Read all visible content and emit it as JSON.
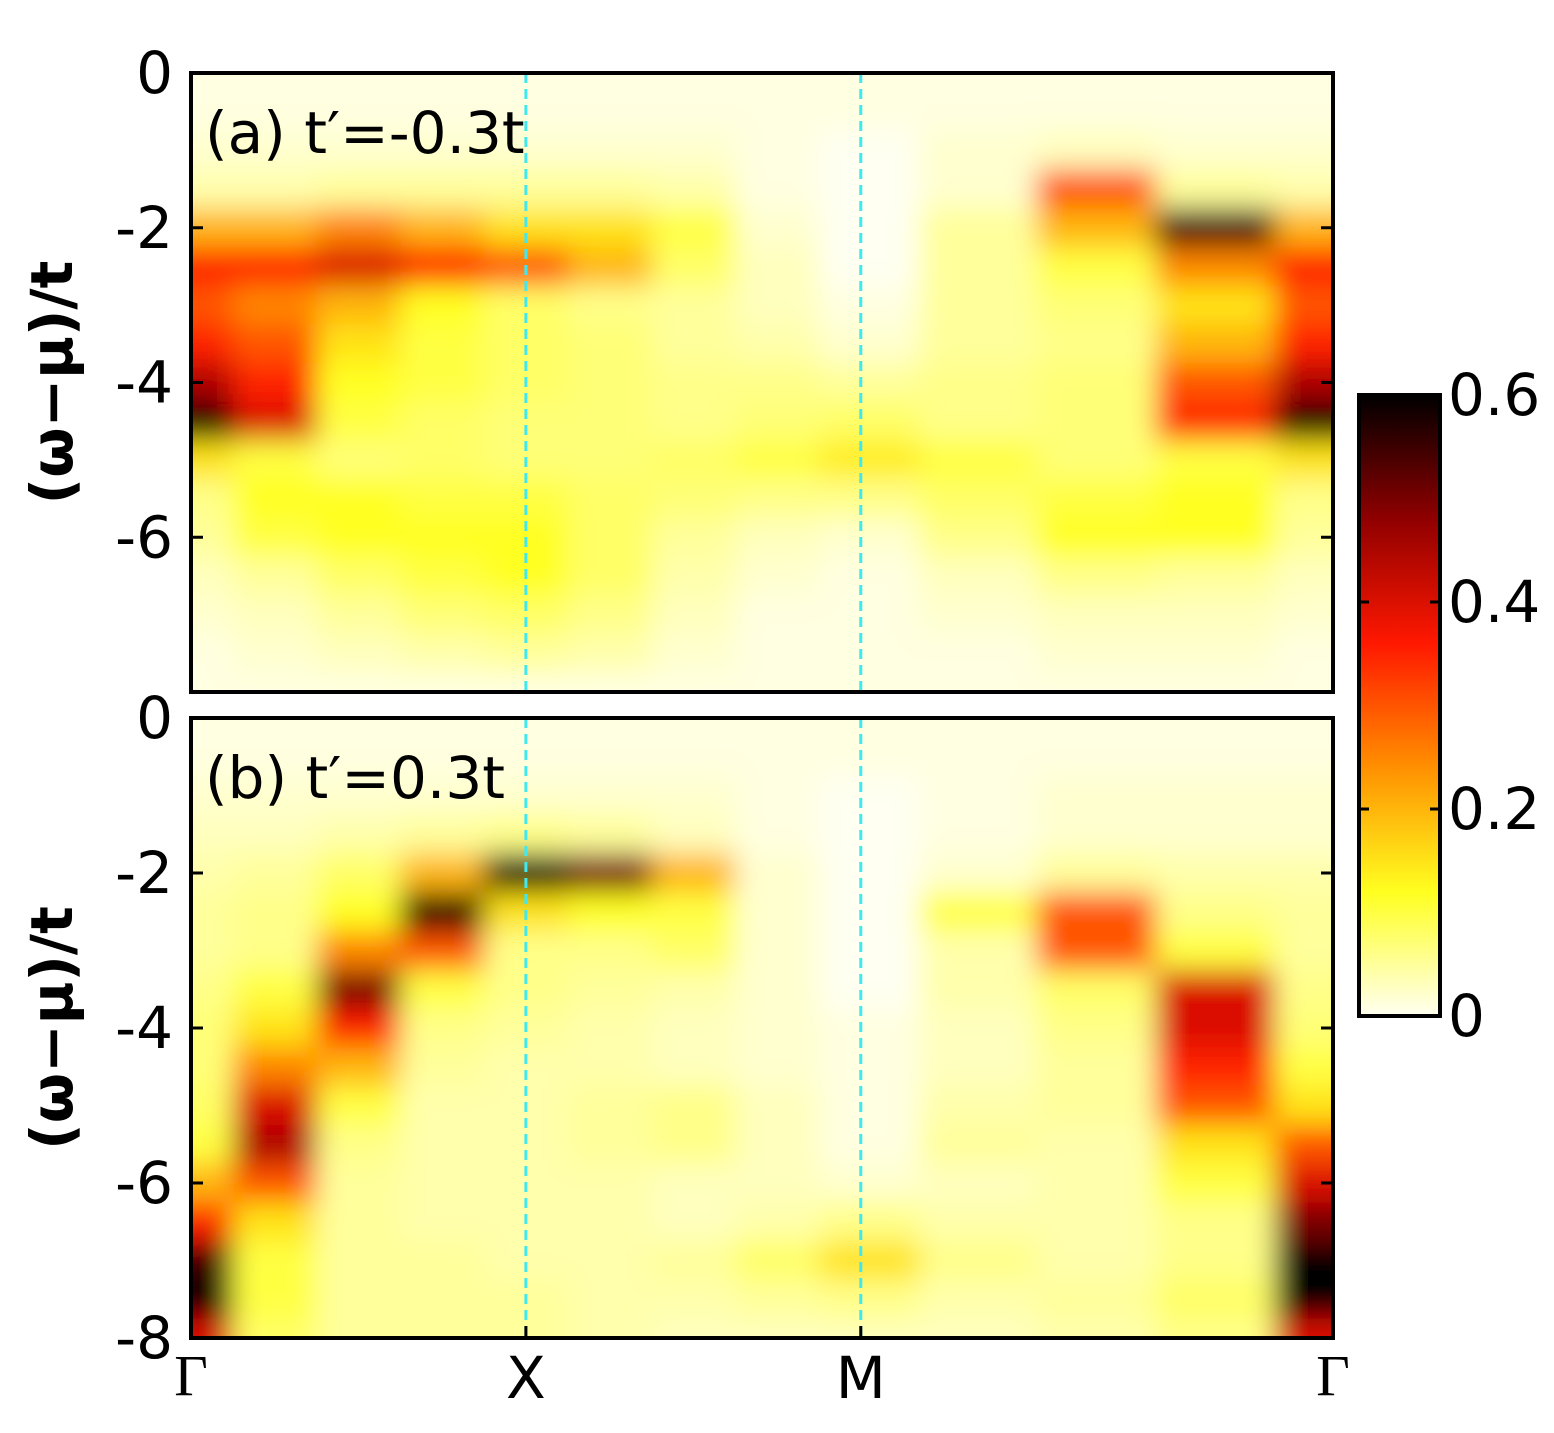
{
  "chart_data": [
    {
      "type": "heatmap",
      "annotation": "(a) t′=-0.3t",
      "ylabel": "(ω−μ)/t",
      "x": [
        0,
        0.25,
        0.5,
        0.75,
        1,
        1.25,
        1.5,
        1.75,
        2,
        2.35,
        2.7,
        3.06,
        3.41
      ],
      "y": [
        0,
        -0.5,
        -1,
        -1.5,
        -2,
        -2.5,
        -3,
        -3.5,
        -4,
        -4.5,
        -5,
        -5.5,
        -6,
        -6.5,
        -7,
        -7.5,
        -8
      ],
      "xlim": [
        0,
        3.41
      ],
      "ylim": [
        -8,
        0
      ],
      "yticks": [
        0,
        -2,
        -4,
        -6
      ],
      "vlines": [
        1,
        2
      ],
      "vline_color": "#40e8f0",
      "z": [
        [
          0.01,
          0.01,
          0.01,
          0.01,
          0.01,
          0.01,
          0.01,
          0.01,
          0.01,
          0.01,
          0.01,
          0.01,
          0.01
        ],
        [
          0.01,
          0.01,
          0.01,
          0.01,
          0.01,
          0.01,
          0.01,
          0.01,
          0.01,
          0.01,
          0.01,
          0.01,
          0.01
        ],
        [
          0.02,
          0.02,
          0.02,
          0.02,
          0.02,
          0.02,
          0.02,
          0.01,
          0.0,
          0.02,
          0.03,
          0.02,
          0.02
        ],
        [
          0.04,
          0.04,
          0.05,
          0.05,
          0.05,
          0.05,
          0.04,
          0.01,
          0.0,
          0.02,
          0.3,
          0.05,
          0.04
        ],
        [
          0.2,
          0.2,
          0.25,
          0.2,
          0.15,
          0.15,
          0.1,
          0.02,
          0.0,
          0.05,
          0.2,
          0.55,
          0.2
        ],
        [
          0.35,
          0.35,
          0.4,
          0.35,
          0.3,
          0.2,
          0.08,
          0.03,
          0.0,
          0.05,
          0.1,
          0.25,
          0.35
        ],
        [
          0.3,
          0.25,
          0.2,
          0.12,
          0.08,
          0.06,
          0.05,
          0.03,
          0.01,
          0.05,
          0.07,
          0.15,
          0.3
        ],
        [
          0.35,
          0.3,
          0.15,
          0.1,
          0.08,
          0.07,
          0.05,
          0.04,
          0.02,
          0.05,
          0.06,
          0.2,
          0.35
        ],
        [
          0.45,
          0.35,
          0.12,
          0.1,
          0.08,
          0.07,
          0.06,
          0.06,
          0.05,
          0.06,
          0.07,
          0.3,
          0.45
        ],
        [
          0.6,
          0.4,
          0.1,
          0.08,
          0.07,
          0.07,
          0.06,
          0.07,
          0.08,
          0.06,
          0.07,
          0.35,
          0.6
        ],
        [
          0.15,
          0.1,
          0.07,
          0.08,
          0.07,
          0.07,
          0.08,
          0.1,
          0.14,
          0.1,
          0.07,
          0.1,
          0.15
        ],
        [
          0.06,
          0.12,
          0.12,
          0.1,
          0.1,
          0.08,
          0.07,
          0.06,
          0.06,
          0.08,
          0.1,
          0.12,
          0.06
        ],
        [
          0.05,
          0.1,
          0.12,
          0.12,
          0.12,
          0.08,
          0.05,
          0.03,
          0.02,
          0.06,
          0.12,
          0.12,
          0.05
        ],
        [
          0.03,
          0.05,
          0.08,
          0.1,
          0.12,
          0.08,
          0.04,
          0.02,
          0.01,
          0.03,
          0.06,
          0.05,
          0.03
        ],
        [
          0.02,
          0.03,
          0.05,
          0.07,
          0.08,
          0.06,
          0.03,
          0.01,
          0.01,
          0.02,
          0.03,
          0.03,
          0.02
        ],
        [
          0.01,
          0.02,
          0.03,
          0.04,
          0.05,
          0.04,
          0.02,
          0.01,
          0.01,
          0.01,
          0.02,
          0.02,
          0.01
        ],
        [
          0.01,
          0.01,
          0.01,
          0.01,
          0.01,
          0.01,
          0.01,
          0.01,
          0.01,
          0.01,
          0.01,
          0.01,
          0.01
        ]
      ]
    },
    {
      "type": "heatmap",
      "annotation": "(b) t′=0.3t",
      "ylabel": "(ω−μ)/t",
      "x": [
        0,
        0.25,
        0.5,
        0.75,
        1,
        1.25,
        1.5,
        1.75,
        2,
        2.35,
        2.7,
        3.06,
        3.41
      ],
      "y": [
        0,
        -0.5,
        -1,
        -1.5,
        -2,
        -2.5,
        -3,
        -3.5,
        -4,
        -4.5,
        -5,
        -5.5,
        -6,
        -6.5,
        -7,
        -7.5,
        -8
      ],
      "xlim": [
        0,
        3.41
      ],
      "ylim": [
        -8,
        0
      ],
      "yticks": [
        0,
        -2,
        -4,
        -6,
        -8
      ],
      "xticks": [
        {
          "value": 0,
          "label": "Γ"
        },
        {
          "value": 1,
          "label": "X"
        },
        {
          "value": 2,
          "label": "M"
        },
        {
          "value": 3.41,
          "label": "Γ"
        }
      ],
      "vlines": [
        1,
        2
      ],
      "vline_color": "#40e8f0",
      "z": [
        [
          0.01,
          0.01,
          0.01,
          0.01,
          0.01,
          0.01,
          0.01,
          0.01,
          0.01,
          0.01,
          0.01,
          0.01,
          0.01
        ],
        [
          0.01,
          0.01,
          0.01,
          0.01,
          0.01,
          0.01,
          0.01,
          0.01,
          0.01,
          0.01,
          0.01,
          0.01,
          0.01
        ],
        [
          0.02,
          0.02,
          0.02,
          0.02,
          0.02,
          0.02,
          0.02,
          0.01,
          0.0,
          0.01,
          0.02,
          0.02,
          0.02
        ],
        [
          0.03,
          0.03,
          0.04,
          0.05,
          0.06,
          0.05,
          0.03,
          0.01,
          0.0,
          0.01,
          0.02,
          0.02,
          0.02
        ],
        [
          0.04,
          0.05,
          0.08,
          0.2,
          0.6,
          0.5,
          0.2,
          0.02,
          0.0,
          0.02,
          0.05,
          0.04,
          0.04
        ],
        [
          0.05,
          0.06,
          0.12,
          0.6,
          0.15,
          0.12,
          0.1,
          0.02,
          0.0,
          0.1,
          0.3,
          0.06,
          0.05
        ],
        [
          0.05,
          0.06,
          0.25,
          0.3,
          0.06,
          0.06,
          0.08,
          0.02,
          0.0,
          0.04,
          0.3,
          0.1,
          0.05
        ],
        [
          0.06,
          0.1,
          0.5,
          0.1,
          0.06,
          0.05,
          0.04,
          0.02,
          0.0,
          0.04,
          0.08,
          0.4,
          0.06
        ],
        [
          0.07,
          0.15,
          0.35,
          0.06,
          0.05,
          0.04,
          0.03,
          0.02,
          0.01,
          0.03,
          0.06,
          0.4,
          0.07
        ],
        [
          0.07,
          0.25,
          0.2,
          0.05,
          0.04,
          0.04,
          0.03,
          0.02,
          0.01,
          0.03,
          0.05,
          0.35,
          0.1
        ],
        [
          0.08,
          0.4,
          0.1,
          0.04,
          0.04,
          0.05,
          0.06,
          0.03,
          0.01,
          0.04,
          0.05,
          0.3,
          0.15
        ],
        [
          0.1,
          0.45,
          0.06,
          0.04,
          0.04,
          0.05,
          0.06,
          0.03,
          0.01,
          0.05,
          0.04,
          0.15,
          0.3
        ],
        [
          0.2,
          0.3,
          0.05,
          0.04,
          0.04,
          0.04,
          0.03,
          0.03,
          0.02,
          0.03,
          0.04,
          0.1,
          0.4
        ],
        [
          0.35,
          0.15,
          0.05,
          0.04,
          0.04,
          0.04,
          0.03,
          0.04,
          0.06,
          0.04,
          0.04,
          0.06,
          0.5
        ],
        [
          0.55,
          0.1,
          0.05,
          0.05,
          0.04,
          0.04,
          0.05,
          0.08,
          0.15,
          0.06,
          0.04,
          0.06,
          0.6
        ],
        [
          0.6,
          0.1,
          0.05,
          0.05,
          0.05,
          0.04,
          0.04,
          0.05,
          0.06,
          0.04,
          0.05,
          0.08,
          0.6
        ],
        [
          0.4,
          0.08,
          0.05,
          0.05,
          0.05,
          0.04,
          0.03,
          0.03,
          0.03,
          0.03,
          0.04,
          0.06,
          0.4
        ]
      ]
    }
  ],
  "colorbar": {
    "clim": [
      0,
      0.6
    ],
    "ticks": [
      0,
      0.2,
      0.4,
      0.6
    ],
    "colormap": [
      "#fffff2",
      "#ffff20",
      "#ff9000",
      "#ff1800",
      "#900000",
      "#000000"
    ]
  }
}
